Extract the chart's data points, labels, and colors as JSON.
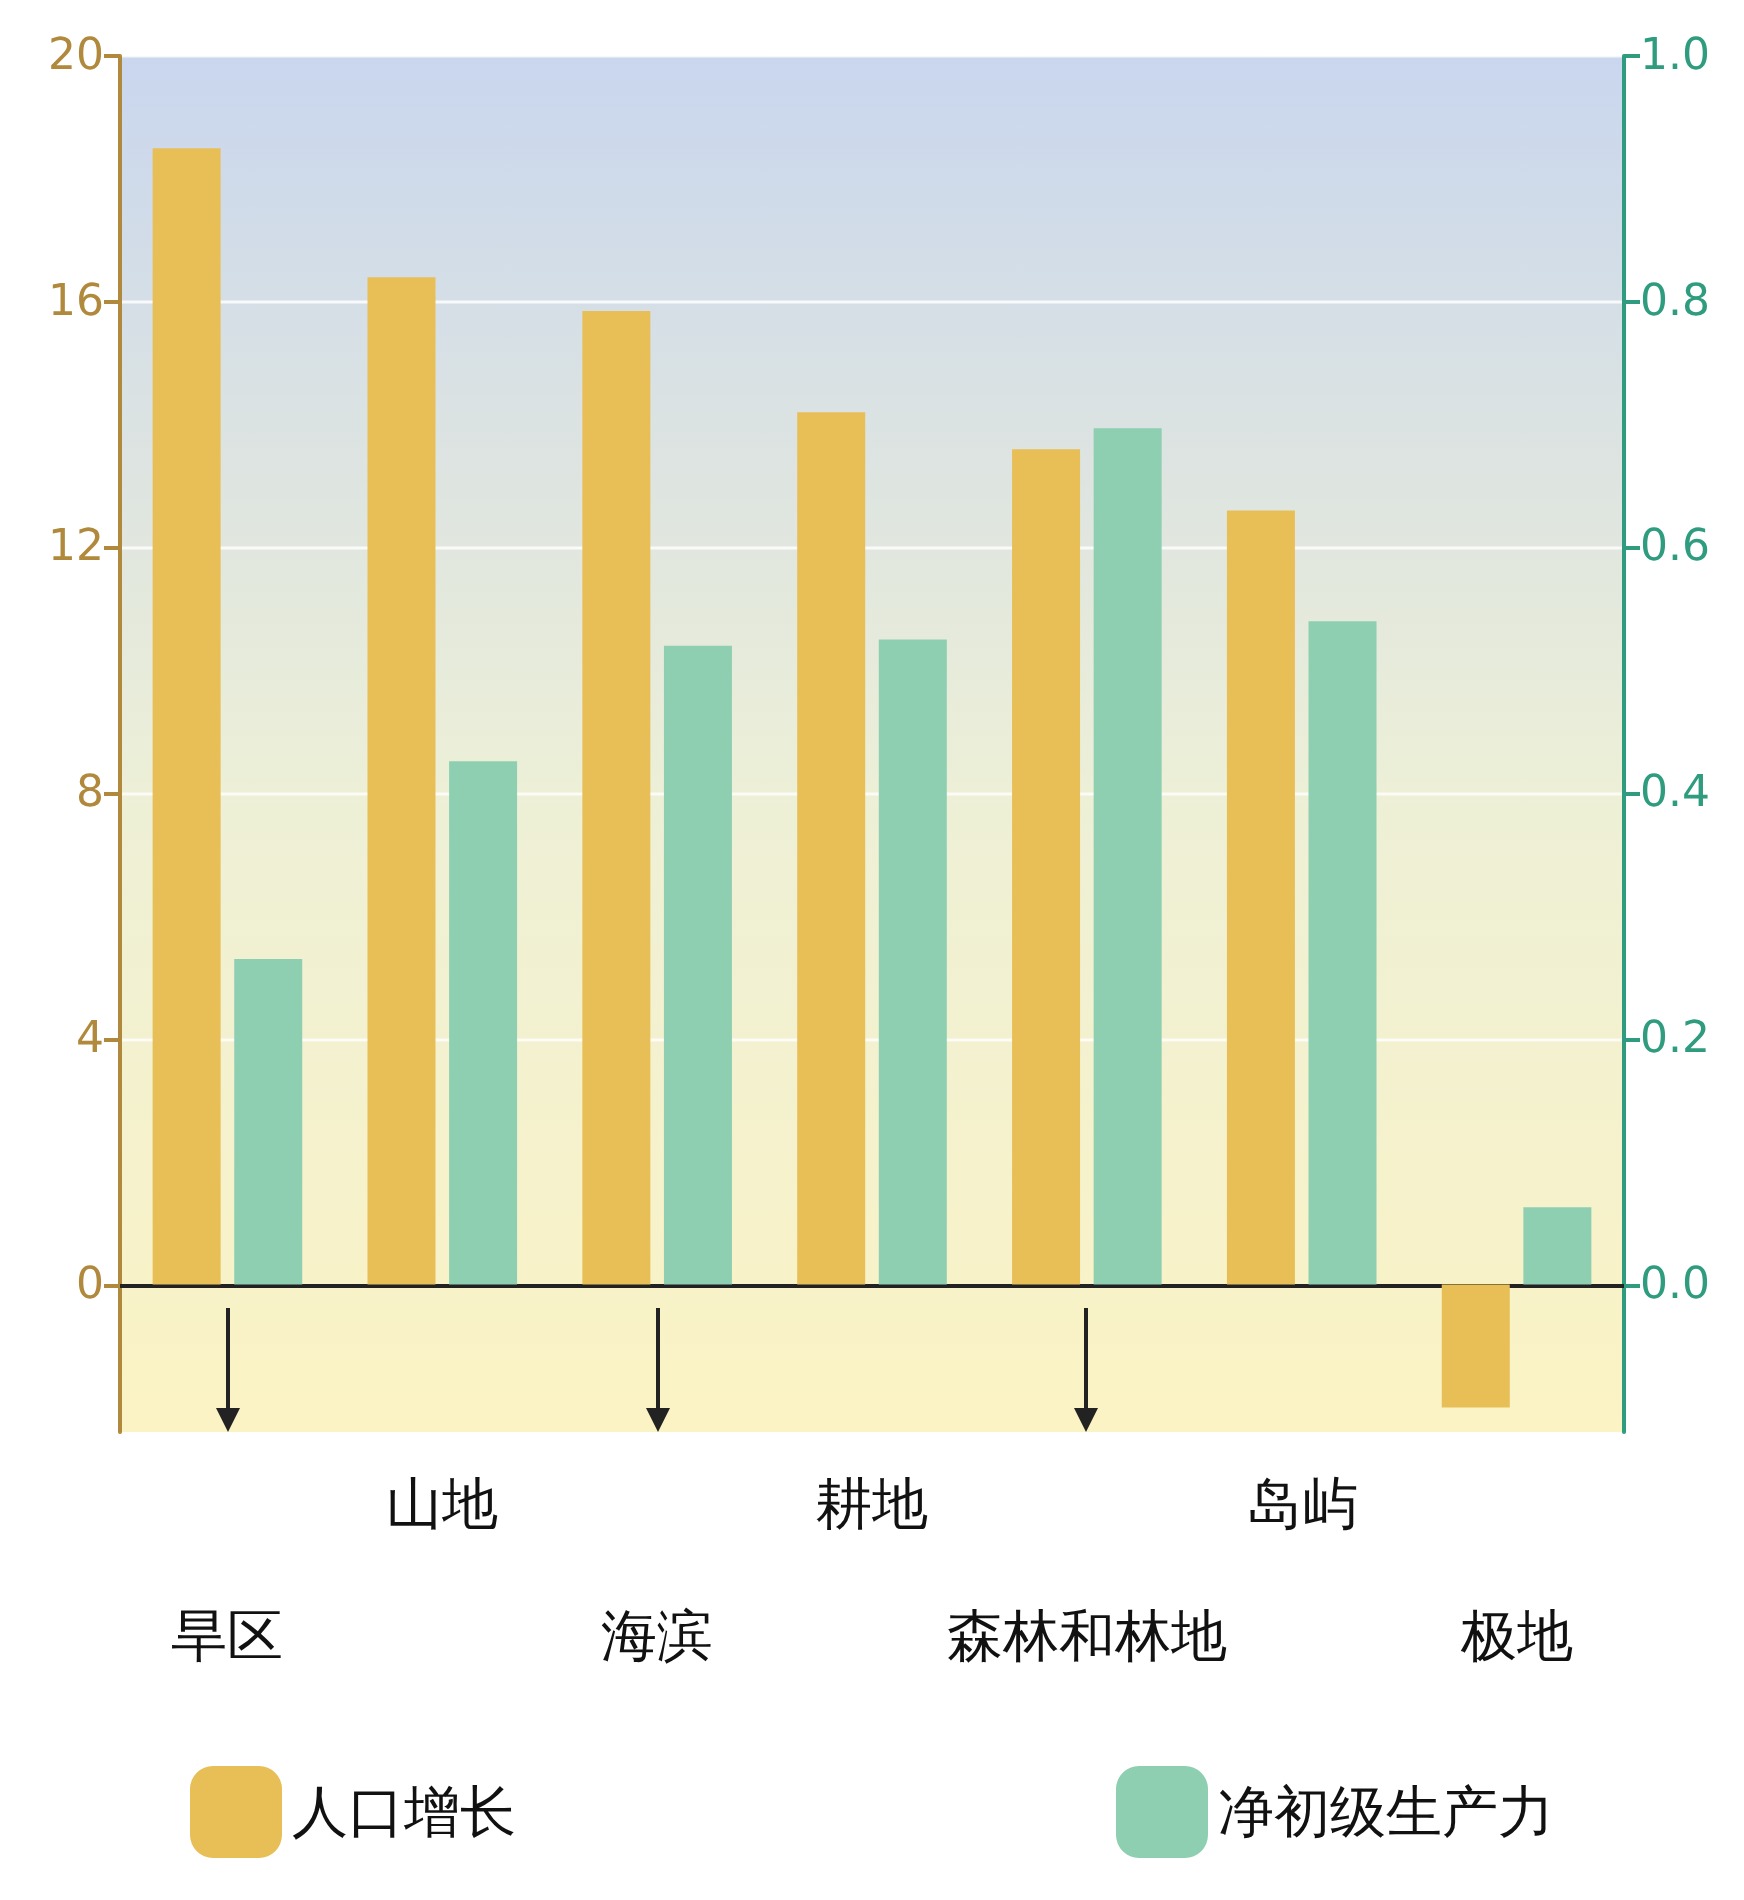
{
  "chart_data": {
    "type": "bar",
    "categories": [
      "旱区",
      "山地",
      "海滨",
      "耕地",
      "森林和林地",
      "岛屿",
      "极地"
    ],
    "series": [
      {
        "name": "人口增长",
        "color": "#e8bf57",
        "values": [
          18.5,
          16.4,
          15.85,
          14.2,
          13.6,
          12.6,
          -2.0
        ]
      },
      {
        "name": "净初级生产力",
        "color": "#8ecfb2",
        "axis": "y2",
        "values": [
          0.265,
          0.426,
          0.52,
          0.525,
          0.697,
          0.54,
          0.063
        ]
      }
    ],
    "ylim": [
      -2.4,
      20
    ],
    "yticks": [
      0,
      4,
      8,
      12,
      16,
      20
    ],
    "y2lim": [
      -0.12,
      1.0
    ],
    "y2ticks": [
      {
        "value": 0,
        "label": "0.0"
      },
      0.2,
      0.4,
      0.6,
      0.8,
      {
        "value": 1,
        "label": "1.0"
      }
    ],
    "grid": "y",
    "legend": "bottom"
  }
}
